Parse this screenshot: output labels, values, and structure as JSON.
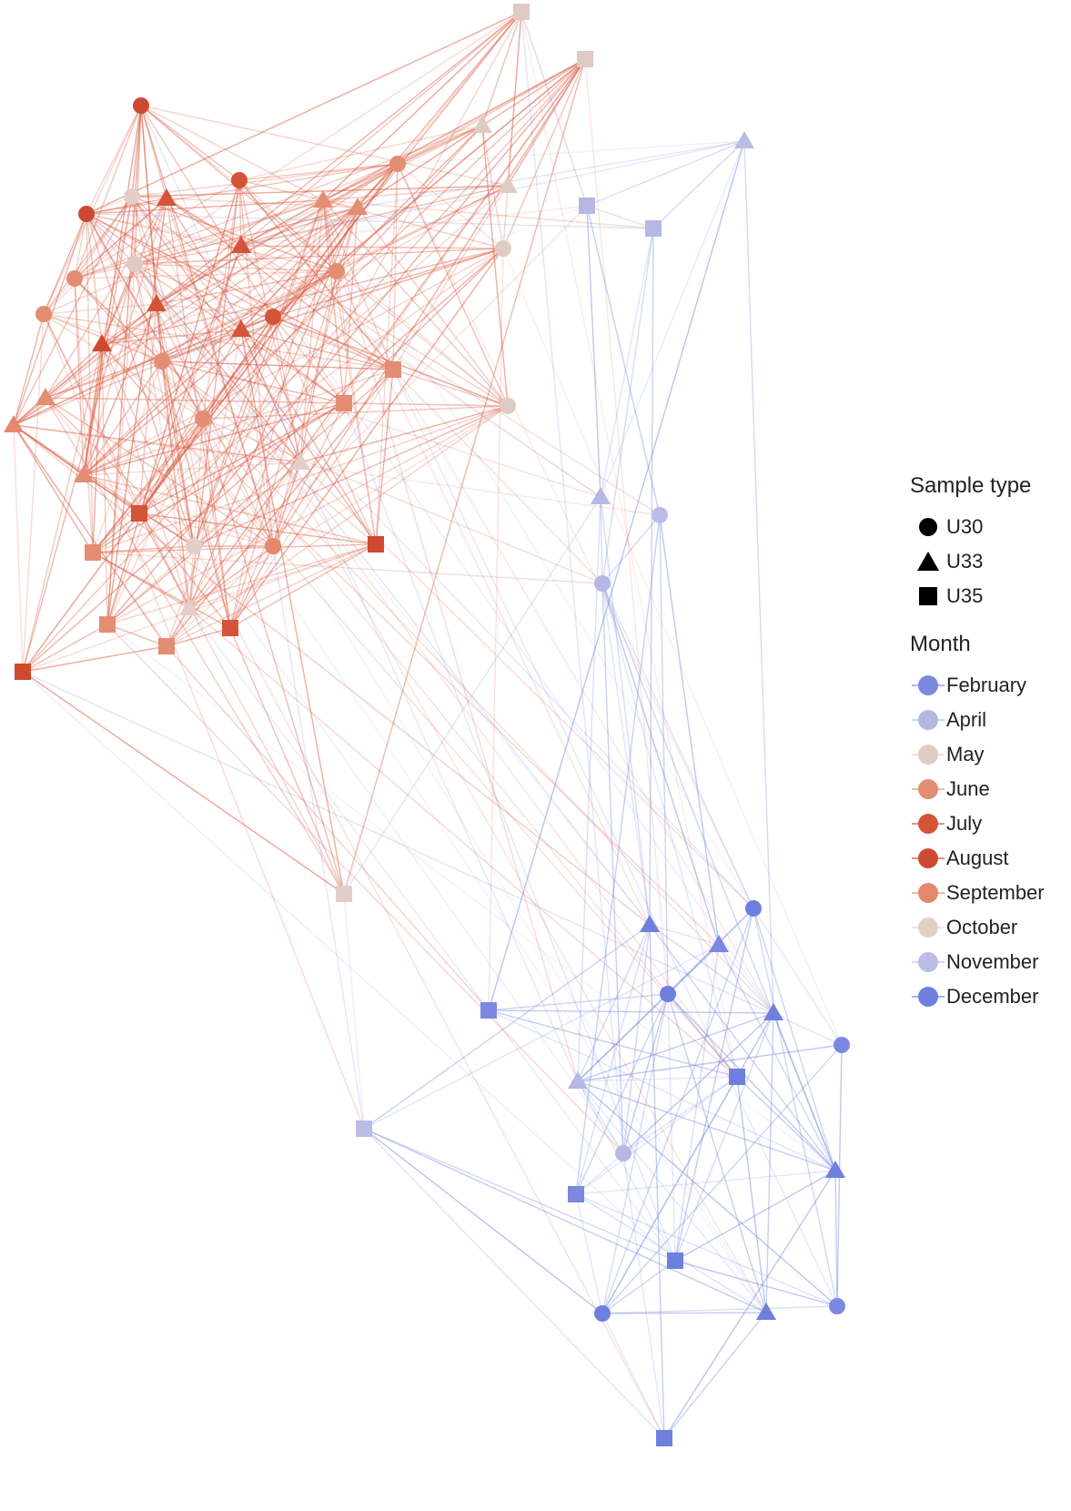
{
  "legend": {
    "shape_title": "Sample type",
    "shapes": [
      {
        "label": "U30",
        "shape": "circle"
      },
      {
        "label": "U33",
        "shape": "triangle"
      },
      {
        "label": "U35",
        "shape": "square"
      }
    ],
    "month_title": "Month",
    "months": [
      {
        "label": "February",
        "color": "#7b88e0"
      },
      {
        "label": "April",
        "color": "#b4b8e3"
      },
      {
        "label": "May",
        "color": "#e0cac4"
      },
      {
        "label": "June",
        "color": "#e38d73"
      },
      {
        "label": "July",
        "color": "#d4543a"
      },
      {
        "label": "August",
        "color": "#cd4a30"
      },
      {
        "label": "September",
        "color": "#e5886b"
      },
      {
        "label": "October",
        "color": "#e3cfc8"
      },
      {
        "label": "November",
        "color": "#babde6"
      },
      {
        "label": "December",
        "color": "#6f7fde"
      }
    ]
  },
  "network": {
    "red_cluster_color": "#d9553a",
    "blue_cluster_color": "#7f8de2",
    "node_count": 70
  }
}
